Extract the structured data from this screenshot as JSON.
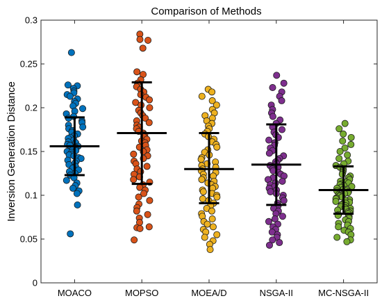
{
  "chart_data": {
    "type": "scatter",
    "title": "Comparison of Methods",
    "xlabel": "",
    "ylabel": "Inversion Generation Distance",
    "ylim": [
      0,
      0.3
    ],
    "yticks": [
      0,
      0.05,
      0.1,
      0.15,
      0.2,
      0.25,
      0.3
    ],
    "ytick_labels": [
      "0",
      "0.05",
      "0.1",
      "0.15",
      "0.2",
      "0.25",
      "0.3"
    ],
    "categories": [
      "MOACO",
      "MOPSO",
      "MOEA/D",
      "NSGA-II",
      "MC-NSGA-II"
    ],
    "grid": false,
    "box": true,
    "series": [
      {
        "category": "MOACO",
        "color": "#0072BD",
        "mean": 0.156,
        "upper": 0.189,
        "lower": 0.123,
        "values": [
          0.263,
          0.226,
          0.225,
          0.222,
          0.219,
          0.217,
          0.215,
          0.213,
          0.21,
          0.207,
          0.205,
          0.202,
          0.199,
          0.196,
          0.193,
          0.19,
          0.188,
          0.185,
          0.183,
          0.18,
          0.178,
          0.176,
          0.174,
          0.172,
          0.17,
          0.168,
          0.166,
          0.165,
          0.163,
          0.161,
          0.16,
          0.158,
          0.157,
          0.156,
          0.155,
          0.154,
          0.152,
          0.151,
          0.15,
          0.149,
          0.147,
          0.146,
          0.145,
          0.143,
          0.142,
          0.14,
          0.139,
          0.137,
          0.135,
          0.133,
          0.131,
          0.129,
          0.127,
          0.125,
          0.123,
          0.12,
          0.117,
          0.114,
          0.111,
          0.108,
          0.105,
          0.102,
          0.089,
          0.056
        ]
      },
      {
        "category": "MOPSO",
        "color": "#D95319",
        "mean": 0.171,
        "upper": 0.229,
        "lower": 0.113,
        "values": [
          0.284,
          0.278,
          0.277,
          0.268,
          0.241,
          0.238,
          0.232,
          0.228,
          0.224,
          0.221,
          0.218,
          0.215,
          0.212,
          0.209,
          0.206,
          0.203,
          0.2,
          0.197,
          0.194,
          0.191,
          0.188,
          0.185,
          0.183,
          0.18,
          0.178,
          0.176,
          0.173,
          0.171,
          0.169,
          0.167,
          0.164,
          0.162,
          0.16,
          0.157,
          0.155,
          0.152,
          0.15,
          0.147,
          0.145,
          0.142,
          0.139,
          0.136,
          0.133,
          0.13,
          0.127,
          0.124,
          0.121,
          0.118,
          0.115,
          0.112,
          0.109,
          0.106,
          0.102,
          0.098,
          0.094,
          0.09,
          0.086,
          0.082,
          0.078,
          0.074,
          0.069,
          0.064,
          0.063,
          0.062,
          0.049
        ]
      },
      {
        "category": "MOEA/D",
        "color": "#EDB120",
        "mean": 0.13,
        "upper": 0.171,
        "lower": 0.091,
        "values": [
          0.221,
          0.218,
          0.213,
          0.208,
          0.203,
          0.198,
          0.194,
          0.191,
          0.188,
          0.185,
          0.182,
          0.179,
          0.176,
          0.173,
          0.17,
          0.167,
          0.164,
          0.161,
          0.158,
          0.155,
          0.152,
          0.149,
          0.146,
          0.143,
          0.141,
          0.138,
          0.136,
          0.134,
          0.132,
          0.13,
          0.128,
          0.126,
          0.124,
          0.122,
          0.12,
          0.118,
          0.116,
          0.114,
          0.112,
          0.11,
          0.108,
          0.106,
          0.104,
          0.102,
          0.1,
          0.098,
          0.096,
          0.094,
          0.091,
          0.088,
          0.085,
          0.082,
          0.079,
          0.076,
          0.073,
          0.07,
          0.067,
          0.064,
          0.061,
          0.058,
          0.055,
          0.052,
          0.048,
          0.044,
          0.038
        ]
      },
      {
        "category": "NSGA-II",
        "color": "#7E2F8E",
        "mean": 0.135,
        "upper": 0.181,
        "lower": 0.089,
        "values": [
          0.237,
          0.228,
          0.223,
          0.218,
          0.213,
          0.208,
          0.203,
          0.198,
          0.194,
          0.19,
          0.186,
          0.182,
          0.178,
          0.175,
          0.172,
          0.169,
          0.166,
          0.163,
          0.16,
          0.157,
          0.154,
          0.151,
          0.148,
          0.145,
          0.142,
          0.14,
          0.138,
          0.136,
          0.134,
          0.132,
          0.13,
          0.128,
          0.126,
          0.124,
          0.122,
          0.12,
          0.118,
          0.116,
          0.114,
          0.112,
          0.11,
          0.108,
          0.106,
          0.104,
          0.102,
          0.1,
          0.097,
          0.094,
          0.091,
          0.088,
          0.085,
          0.082,
          0.079,
          0.076,
          0.073,
          0.07,
          0.067,
          0.064,
          0.061,
          0.058,
          0.055,
          0.052,
          0.049,
          0.046,
          0.043
        ]
      },
      {
        "category": "MC-NSGA-II",
        "color": "#77AC30",
        "mean": 0.106,
        "upper": 0.133,
        "lower": 0.079,
        "values": [
          0.182,
          0.176,
          0.17,
          0.166,
          0.162,
          0.158,
          0.154,
          0.15,
          0.146,
          0.142,
          0.139,
          0.136,
          0.134,
          0.132,
          0.13,
          0.128,
          0.126,
          0.124,
          0.122,
          0.12,
          0.118,
          0.116,
          0.115,
          0.114,
          0.113,
          0.112,
          0.111,
          0.11,
          0.109,
          0.108,
          0.107,
          0.106,
          0.105,
          0.104,
          0.103,
          0.102,
          0.101,
          0.1,
          0.099,
          0.098,
          0.097,
          0.096,
          0.095,
          0.094,
          0.093,
          0.092,
          0.091,
          0.09,
          0.089,
          0.088,
          0.087,
          0.086,
          0.085,
          0.084,
          0.083,
          0.082,
          0.081,
          0.08,
          0.079,
          0.078,
          0.077,
          0.076,
          0.075,
          0.074,
          0.072,
          0.07,
          0.068,
          0.066,
          0.064,
          0.062,
          0.06,
          0.058,
          0.055,
          0.052,
          0.049,
          0.047
        ]
      }
    ]
  }
}
